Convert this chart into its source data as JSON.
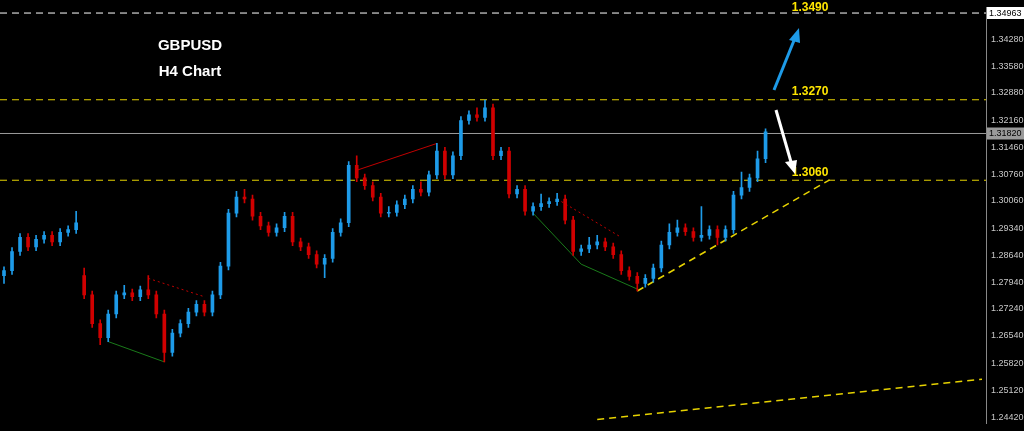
{
  "chart_data": {
    "type": "candlestick",
    "title": "GBPUSD",
    "subtitle": "H4 Chart",
    "categories": [
      null,
      null,
      null,
      null,
      null,
      null,
      null,
      null,
      null,
      null,
      null,
      null,
      null,
      null,
      null,
      null,
      null,
      null,
      null,
      null,
      null,
      null,
      null,
      null,
      null,
      null,
      null,
      null,
      null,
      null,
      null,
      null,
      null,
      null,
      null,
      null,
      null,
      null,
      null,
      null,
      null,
      null,
      null,
      null,
      null,
      null,
      null,
      null,
      null,
      null,
      null,
      null,
      null,
      null,
      null,
      null,
      null,
      null,
      null,
      null,
      null,
      null,
      null,
      null,
      null,
      null,
      null,
      null,
      null,
      null,
      null,
      null,
      null,
      null,
      null,
      null,
      null,
      null,
      null,
      null,
      null,
      null,
      null,
      null,
      null,
      null,
      null,
      null,
      null,
      null,
      null,
      null,
      null,
      null,
      null,
      null,
      null,
      null,
      null,
      null,
      null,
      null,
      null,
      null,
      null,
      null,
      null,
      null,
      null,
      null,
      null,
      null,
      null,
      null,
      null,
      null,
      null,
      null,
      null,
      null,
      null,
      null,
      null
    ],
    "ohlc": [
      [
        1.2811,
        1.2834,
        1.2791,
        1.2824
      ],
      [
        1.2824,
        1.2884,
        1.2814,
        1.2874
      ],
      [
        1.2874,
        1.2921,
        1.2864,
        1.2911
      ],
      [
        1.2911,
        1.2921,
        1.2876,
        1.2886
      ],
      [
        1.2886,
        1.2916,
        1.2876,
        1.2906
      ],
      [
        1.2906,
        1.2926,
        1.2896,
        1.2916
      ],
      [
        1.2916,
        1.2926,
        1.2889,
        1.2899
      ],
      [
        1.2899,
        1.2934,
        1.2889,
        1.2924
      ],
      [
        1.2924,
        1.2941,
        1.2914,
        1.2931
      ],
      [
        1.2931,
        1.2979,
        1.2921,
        1.2949
      ],
      [
        1.2811,
        1.2831,
        1.2751,
        1.2761
      ],
      [
        1.2761,
        1.2771,
        1.2676,
        1.2686
      ],
      [
        1.2686,
        1.2696,
        1.2631,
        1.2649
      ],
      [
        1.2649,
        1.2721,
        1.2639,
        1.2711
      ],
      [
        1.2711,
        1.2771,
        1.2701,
        1.2761
      ],
      [
        1.2761,
        1.2786,
        1.2751,
        1.2766
      ],
      [
        1.2766,
        1.2776,
        1.2746,
        1.2756
      ],
      [
        1.2756,
        1.2784,
        1.2746,
        1.2774
      ],
      [
        1.2774,
        1.2811,
        1.2751,
        1.2761
      ],
      [
        1.2761,
        1.2771,
        1.2701,
        1.2711
      ],
      [
        1.2711,
        1.2721,
        1.2586,
        1.2611
      ],
      [
        1.2611,
        1.2671,
        1.2601,
        1.2661
      ],
      [
        1.2661,
        1.2696,
        1.2651,
        1.2686
      ],
      [
        1.2686,
        1.2726,
        1.2676,
        1.2716
      ],
      [
        1.2716,
        1.2746,
        1.2706,
        1.2736
      ],
      [
        1.2736,
        1.2746,
        1.2706,
        1.2716
      ],
      [
        1.2716,
        1.2771,
        1.2706,
        1.2761
      ],
      [
        1.2761,
        1.2846,
        1.2751,
        1.2836
      ],
      [
        1.2836,
        1.2984,
        1.2826,
        1.2974
      ],
      [
        1.2974,
        1.3031,
        1.2964,
        1.3016
      ],
      [
        1.3016,
        1.3036,
        1.3001,
        1.3011
      ],
      [
        1.3011,
        1.3021,
        1.2956,
        1.2966
      ],
      [
        1.2966,
        1.2976,
        1.2931,
        1.2941
      ],
      [
        1.2941,
        1.2951,
        1.2914,
        1.2924
      ],
      [
        1.2924,
        1.2946,
        1.2914,
        1.2936
      ],
      [
        1.2936,
        1.2976,
        1.2926,
        1.2966
      ],
      [
        1.2966,
        1.2976,
        1.2889,
        1.2899
      ],
      [
        1.2899,
        1.2909,
        1.2876,
        1.2886
      ],
      [
        1.2886,
        1.2896,
        1.2856,
        1.2866
      ],
      [
        1.2866,
        1.2876,
        1.2831,
        1.2841
      ],
      [
        1.2841,
        1.2866,
        1.2806,
        1.2856
      ],
      [
        1.2856,
        1.2934,
        1.2846,
        1.2924
      ],
      [
        1.2924,
        1.2959,
        1.2914,
        1.2949
      ],
      [
        1.2949,
        1.3109,
        1.2939,
        1.3099
      ],
      [
        1.3099,
        1.3124,
        1.3056,
        1.3066
      ],
      [
        1.3066,
        1.3076,
        1.3036,
        1.3046
      ],
      [
        1.3046,
        1.3056,
        1.3006,
        1.3016
      ],
      [
        1.3016,
        1.3026,
        1.2964,
        1.2974
      ],
      [
        1.2974,
        1.2991,
        1.2964,
        1.2976
      ],
      [
        1.2976,
        1.3006,
        1.2966,
        1.2996
      ],
      [
        1.2996,
        1.3021,
        1.2986,
        1.3011
      ],
      [
        1.3011,
        1.3046,
        1.3001,
        1.3036
      ],
      [
        1.3036,
        1.3056,
        1.3019,
        1.3029
      ],
      [
        1.3029,
        1.3084,
        1.3019,
        1.3074
      ],
      [
        1.3074,
        1.3156,
        1.3064,
        1.3136
      ],
      [
        1.3136,
        1.3146,
        1.3064,
        1.3074
      ],
      [
        1.3074,
        1.3134,
        1.3064,
        1.3124
      ],
      [
        1.3124,
        1.3226,
        1.3114,
        1.3216
      ],
      [
        1.3216,
        1.3241,
        1.3206,
        1.3231
      ],
      [
        1.3231,
        1.3249,
        1.3214,
        1.3224
      ],
      [
        1.3224,
        1.3269,
        1.3214,
        1.3249
      ],
      [
        1.3249,
        1.3259,
        1.3114,
        1.3124
      ],
      [
        1.3124,
        1.3146,
        1.3114,
        1.3136
      ],
      [
        1.3136,
        1.3146,
        1.3014,
        1.3024
      ],
      [
        1.3024,
        1.3046,
        1.3014,
        1.3036
      ],
      [
        1.3036,
        1.3046,
        1.2969,
        1.2979
      ],
      [
        1.2979,
        1.3001,
        1.2969,
        1.2991
      ],
      [
        1.2991,
        1.3024,
        1.2981,
        1.2999
      ],
      [
        1.2999,
        1.3014,
        1.2989,
        1.3004
      ],
      [
        1.3004,
        1.3026,
        1.2994,
        1.3011
      ],
      [
        1.3011,
        1.3021,
        1.2946,
        1.2956
      ],
      [
        1.2956,
        1.2966,
        1.2864,
        1.2874
      ],
      [
        1.2874,
        1.2891,
        1.2864,
        1.2881
      ],
      [
        1.2881,
        1.2911,
        1.2871,
        1.2891
      ],
      [
        1.2891,
        1.2916,
        1.2881,
        1.2899
      ],
      [
        1.2899,
        1.2909,
        1.2876,
        1.2886
      ],
      [
        1.2886,
        1.2896,
        1.2856,
        1.2866
      ],
      [
        1.2866,
        1.2876,
        1.2814,
        1.2824
      ],
      [
        1.2824,
        1.2834,
        1.2799,
        1.2809
      ],
      [
        1.2809,
        1.2819,
        1.2771,
        1.2791
      ],
      [
        1.2791,
        1.2814,
        1.2781,
        1.2804
      ],
      [
        1.2804,
        1.2841,
        1.2794,
        1.2831
      ],
      [
        1.2831,
        1.2901,
        1.2821,
        1.2891
      ],
      [
        1.2891,
        1.2946,
        1.2881,
        1.2924
      ],
      [
        1.2924,
        1.2956,
        1.2914,
        1.2936
      ],
      [
        1.2936,
        1.2946,
        1.2916,
        1.2926
      ],
      [
        1.2926,
        1.2936,
        1.2901,
        1.2911
      ],
      [
        1.2911,
        1.2991,
        1.2901,
        1.2916
      ],
      [
        1.2916,
        1.2941,
        1.2906,
        1.2931
      ],
      [
        1.2931,
        1.2941,
        1.2891,
        1.2911
      ],
      [
        1.2911,
        1.2941,
        1.2901,
        1.2931
      ],
      [
        1.2931,
        1.3031,
        1.2921,
        1.3021
      ],
      [
        1.3021,
        1.3081,
        1.3011,
        1.3041
      ],
      [
        1.3041,
        1.3076,
        1.3031,
        1.3066
      ],
      [
        1.3066,
        1.3136,
        1.3056,
        1.3116
      ],
      [
        1.3116,
        1.3194,
        1.3106,
        1.3186
      ],
      null,
      null,
      null,
      null,
      null,
      null,
      null,
      null,
      null,
      null,
      null,
      null,
      null,
      null,
      null,
      null,
      null,
      null,
      null,
      null,
      null,
      null,
      null,
      null,
      null,
      null,
      null
    ],
    "colors": [
      "#1e9be8",
      "#1e9be8",
      "#1e9be8",
      "#d00000",
      "#1e9be8",
      "#1e9be8",
      "#d00000",
      "#1e9be8",
      "#1e9be8",
      "#1e9be8",
      "#d00000",
      "#d00000",
      "#d00000",
      "#1e9be8",
      "#1e9be8",
      "#1e9be8",
      "#d00000",
      "#1e9be8",
      "#d00000",
      "#d00000",
      "#d00000",
      "#1e9be8",
      "#1e9be8",
      "#1e9be8",
      "#1e9be8",
      "#d00000",
      "#1e9be8",
      "#1e9be8",
      "#1e9be8",
      "#1e9be8",
      "#d00000",
      "#d00000",
      "#d00000",
      "#d00000",
      "#1e9be8",
      "#1e9be8",
      "#d00000",
      "#d00000",
      "#d00000",
      "#d00000",
      "#1e9be8",
      "#1e9be8",
      "#1e9be8",
      "#1e9be8",
      "#d00000",
      "#d00000",
      "#d00000",
      "#d00000",
      "#1e9be8",
      "#1e9be8",
      "#1e9be8",
      "#1e9be8",
      "#d00000",
      "#1e9be8",
      "#1e9be8",
      "#d00000",
      "#1e9be8",
      "#1e9be8",
      "#1e9be8",
      "#d00000",
      "#1e9be8",
      "#d00000",
      "#1e9be8",
      "#d00000",
      "#1e9be8",
      "#d00000",
      "#1e9be8",
      "#1e9be8",
      "#1e9be8",
      "#1e9be8",
      "#d00000",
      "#d00000",
      "#1e9be8",
      "#1e9be8",
      "#1e9be8",
      "#d00000",
      "#d00000",
      "#d00000",
      "#d00000",
      "#d00000",
      "#1e9be8",
      "#1e9be8",
      "#1e9be8",
      "#1e9be8",
      "#1e9be8",
      "#d00000",
      "#d00000",
      "#1e9be8",
      "#1e9be8",
      "#d00000",
      "#1e9be8",
      "#1e9be8",
      "#1e9be8",
      "#1e9be8",
      "#1e9be8",
      "#1e9be8",
      null,
      null,
      null,
      null,
      null,
      null,
      null,
      null,
      null,
      null,
      null,
      null,
      null,
      null,
      null,
      null,
      null,
      null,
      null,
      null,
      null,
      null,
      null,
      null,
      null,
      null,
      null
    ],
    "series": [
      {
        "type": "line",
        "color": "#e6d200",
        "line_style": "dashed",
        "values": [
          null,
          null,
          null,
          null,
          null,
          null,
          null,
          null,
          null,
          null,
          null,
          null,
          null,
          null,
          null,
          null,
          null,
          null,
          null,
          null,
          null,
          null,
          null,
          null,
          null,
          null,
          null,
          null,
          null,
          null,
          null,
          null,
          null,
          null,
          null,
          null,
          null,
          null,
          null,
          null,
          null,
          null,
          null,
          null,
          null,
          null,
          null,
          null,
          null,
          null,
          null,
          null,
          null,
          null,
          null,
          null,
          null,
          null,
          null,
          null,
          null,
          null,
          null,
          null,
          null,
          null,
          null,
          null,
          null,
          null,
          null,
          null,
          null,
          null,
          null,
          null,
          null,
          null,
          null,
          1.2771,
          null,
          null,
          null,
          null,
          null,
          null,
          null,
          null,
          null,
          null,
          null,
          null,
          null,
          null,
          null,
          null,
          null,
          null,
          null,
          null,
          null,
          null,
          null,
          1.3061,
          null,
          null,
          null,
          null,
          null,
          null,
          null,
          null,
          null,
          null,
          null,
          null,
          null,
          null,
          null,
          null,
          null,
          null,
          null
        ]
      },
      {
        "type": "line",
        "color": "#e6d200",
        "line_style": "dashed",
        "values": [
          null,
          null,
          null,
          null,
          null,
          null,
          null,
          null,
          null,
          null,
          null,
          null,
          null,
          null,
          null,
          null,
          null,
          null,
          null,
          null,
          null,
          null,
          null,
          null,
          null,
          null,
          null,
          null,
          null,
          null,
          null,
          null,
          null,
          null,
          null,
          null,
          null,
          null,
          null,
          null,
          null,
          null,
          null,
          null,
          null,
          null,
          null,
          null,
          null,
          null,
          null,
          null,
          null,
          null,
          null,
          null,
          null,
          null,
          null,
          null,
          null,
          null,
          null,
          null,
          null,
          null,
          null,
          null,
          null,
          null,
          null,
          null,
          null,
          null,
          1.2436,
          null,
          null,
          null,
          null,
          null,
          null,
          null,
          null,
          null,
          null,
          null,
          null,
          null,
          null,
          null,
          null,
          null,
          null,
          null,
          null,
          null,
          null,
          null,
          null,
          null,
          null,
          null,
          null,
          null,
          null,
          null,
          null,
          null,
          null,
          null,
          null,
          null,
          null,
          null,
          null,
          null,
          null,
          null,
          null,
          null,
          null,
          null,
          1.2541
        ]
      },
      {
        "type": "line",
        "color": "#c00000",
        "line_style": "solid",
        "values": [
          null,
          null,
          null,
          null,
          null,
          null,
          null,
          null,
          null,
          null,
          null,
          null,
          null,
          null,
          null,
          null,
          null,
          null,
          null,
          null,
          null,
          null,
          null,
          null,
          null,
          null,
          null,
          null,
          null,
          null,
          null,
          null,
          null,
          null,
          null,
          null,
          null,
          null,
          null,
          null,
          null,
          null,
          null,
          null,
          1.3086,
          null,
          null,
          null,
          null,
          null,
          null,
          null,
          null,
          null,
          1.3156,
          null,
          null,
          null,
          null,
          null,
          null,
          null,
          null,
          null,
          null,
          null,
          null,
          null,
          null,
          null,
          null,
          null,
          null,
          null,
          null,
          null,
          null,
          null,
          null,
          null,
          null,
          null,
          null,
          null,
          null,
          null,
          null,
          null,
          null,
          null,
          null,
          null,
          null,
          null,
          null,
          null,
          null,
          null,
          null,
          null,
          null,
          null,
          null,
          null,
          null,
          null,
          null,
          null,
          null,
          null,
          null,
          null,
          null,
          null,
          null,
          null,
          null,
          null,
          null,
          null,
          null,
          null,
          null
        ]
      },
      {
        "type": "line",
        "color": "#c00000",
        "line_style": "dotted",
        "values": [
          null,
          null,
          null,
          null,
          null,
          null,
          null,
          null,
          null,
          null,
          null,
          null,
          null,
          null,
          null,
          null,
          null,
          null,
          1.2804,
          null,
          null,
          null,
          null,
          null,
          null,
          1.2756,
          null,
          null,
          null,
          null,
          null,
          null,
          null,
          null,
          null,
          null,
          null,
          null,
          null,
          null,
          null,
          null,
          null,
          null,
          null,
          null,
          null,
          null,
          null,
          null,
          null,
          null,
          null,
          null,
          null,
          null,
          null,
          null,
          null,
          null,
          null,
          null,
          null,
          null,
          null,
          null,
          null,
          null,
          null,
          null,
          null,
          null,
          null,
          null,
          null,
          null,
          null,
          null,
          null,
          null,
          null,
          null,
          null,
          null,
          null,
          null,
          null,
          null,
          null,
          null,
          null,
          null,
          null,
          null,
          null,
          null,
          null,
          null,
          null,
          null,
          null,
          null,
          null,
          null,
          null,
          null,
          null,
          null,
          null,
          null,
          null,
          null,
          null,
          null,
          null,
          null,
          null,
          null,
          null,
          null,
          null,
          null,
          null
        ]
      },
      {
        "type": "line",
        "color": "#1a7a1a",
        "line_style": "solid",
        "values": [
          null,
          null,
          null,
          null,
          null,
          null,
          null,
          null,
          null,
          null,
          null,
          null,
          null,
          1.2639,
          null,
          null,
          null,
          null,
          null,
          null,
          1.2586,
          null,
          null,
          null,
          null,
          null,
          null,
          null,
          null,
          null,
          null,
          null,
          null,
          null,
          null,
          null,
          null,
          null,
          null,
          null,
          null,
          null,
          null,
          null,
          null,
          null,
          null,
          null,
          null,
          null,
          null,
          null,
          null,
          null,
          null,
          null,
          null,
          null,
          null,
          null,
          null,
          null,
          null,
          null,
          null,
          null,
          null,
          null,
          null,
          null,
          null,
          null,
          null,
          null,
          null,
          null,
          null,
          null,
          null,
          null,
          null,
          null,
          null,
          null,
          null,
          null,
          null,
          null,
          null,
          null,
          null,
          null,
          null,
          null,
          null,
          null,
          null,
          null,
          null,
          null,
          null,
          null,
          null,
          null,
          null,
          null,
          null,
          null,
          null,
          null,
          null,
          null,
          null,
          null,
          null,
          null,
          null,
          null,
          null,
          null,
          null,
          null,
          null
        ]
      },
      {
        "type": "line",
        "color": "#c00000",
        "line_style": "dotted",
        "values": [
          null,
          null,
          null,
          null,
          null,
          null,
          null,
          null,
          null,
          null,
          null,
          null,
          null,
          null,
          null,
          null,
          null,
          null,
          null,
          null,
          null,
          null,
          null,
          null,
          null,
          null,
          null,
          null,
          null,
          null,
          null,
          null,
          null,
          null,
          null,
          null,
          null,
          null,
          null,
          null,
          null,
          null,
          null,
          null,
          null,
          null,
          null,
          null,
          null,
          null,
          null,
          null,
          null,
          null,
          null,
          null,
          null,
          null,
          null,
          null,
          null,
          null,
          null,
          null,
          null,
          null,
          null,
          null,
          null,
          1.3011,
          null,
          null,
          null,
          null,
          null,
          null,
          null,
          1.2911,
          null,
          null,
          null,
          null,
          null,
          null,
          null,
          null,
          null,
          null,
          null,
          null,
          null,
          null,
          null,
          null,
          null,
          null,
          null,
          null,
          null,
          null,
          null,
          null,
          null,
          null,
          null,
          null,
          null,
          null,
          null,
          null,
          null,
          null,
          null,
          null,
          null,
          null,
          null,
          null,
          null,
          null,
          null,
          null,
          null
        ]
      },
      {
        "type": "line",
        "color": "#1a7a1a",
        "line_style": "solid",
        "values": [
          null,
          null,
          null,
          null,
          null,
          null,
          null,
          null,
          null,
          null,
          null,
          null,
          null,
          null,
          null,
          null,
          null,
          null,
          null,
          null,
          null,
          null,
          null,
          null,
          null,
          null,
          null,
          null,
          null,
          null,
          null,
          null,
          null,
          null,
          null,
          null,
          null,
          null,
          null,
          null,
          null,
          null,
          null,
          null,
          null,
          null,
          null,
          null,
          null,
          null,
          null,
          null,
          null,
          null,
          null,
          null,
          null,
          null,
          null,
          null,
          null,
          null,
          null,
          null,
          null,
          null,
          1.2974,
          null,
          null,
          null,
          null,
          null,
          1.2841,
          null,
          null,
          null,
          null,
          null,
          null,
          1.2776,
          null,
          null,
          null,
          null,
          null,
          null,
          null,
          null,
          null,
          null,
          null,
          null,
          null,
          null,
          null,
          null,
          null,
          null,
          null,
          null,
          null,
          null,
          null,
          null,
          null,
          null,
          null,
          null,
          null,
          null,
          null,
          null,
          null,
          null,
          null,
          null,
          null,
          null,
          null,
          null,
          null,
          null,
          null
        ]
      }
    ],
    "ylim": [
      1.2425,
      1.3511
    ],
    "yticks": [
      {
        "value": 1.3428,
        "label": "1.34280"
      },
      {
        "value": 1.3358,
        "label": "1.33580"
      },
      {
        "value": 1.3288,
        "label": "1.32880"
      },
      {
        "value": 1.3216,
        "label": "1.32160"
      },
      {
        "value": 1.3146,
        "label": "1.31460"
      },
      {
        "value": 1.3076,
        "label": "1.30760"
      },
      {
        "value": 1.3006,
        "label": "1.30060"
      },
      {
        "value": 1.2934,
        "label": "1.29340"
      },
      {
        "value": 1.2864,
        "label": "1.28640"
      },
      {
        "value": 1.2794,
        "label": "1.27940"
      },
      {
        "value": 1.2724,
        "label": "1.27240"
      },
      {
        "value": 1.2654,
        "label": "1.26540"
      },
      {
        "value": 1.2582,
        "label": "1.25820"
      },
      {
        "value": 1.2512,
        "label": "1.25120"
      },
      {
        "value": 1.2442,
        "label": "1.24420"
      }
    ],
    "ref_lines": [
      {
        "axis": "y",
        "value": 1.34963,
        "label": "1.34963",
        "color": "#ffffff",
        "line_style": "dashed"
      },
      {
        "axis": "y",
        "value": 1.3182,
        "label": "1.31820",
        "color": "#9a9a9a",
        "line_style": "solid"
      },
      {
        "axis": "y",
        "value": 1.327,
        "color": "#e6d200",
        "line_style": "dashed"
      },
      {
        "axis": "y",
        "value": 1.306,
        "color": "#e6d200",
        "line_style": "dashed"
      }
    ],
    "annotations": [
      {
        "text": "1.3490",
        "y": 1.349
      },
      {
        "text": "1.3270",
        "y": 1.327
      },
      {
        "text": "1.3060",
        "y": 1.306
      }
    ]
  }
}
